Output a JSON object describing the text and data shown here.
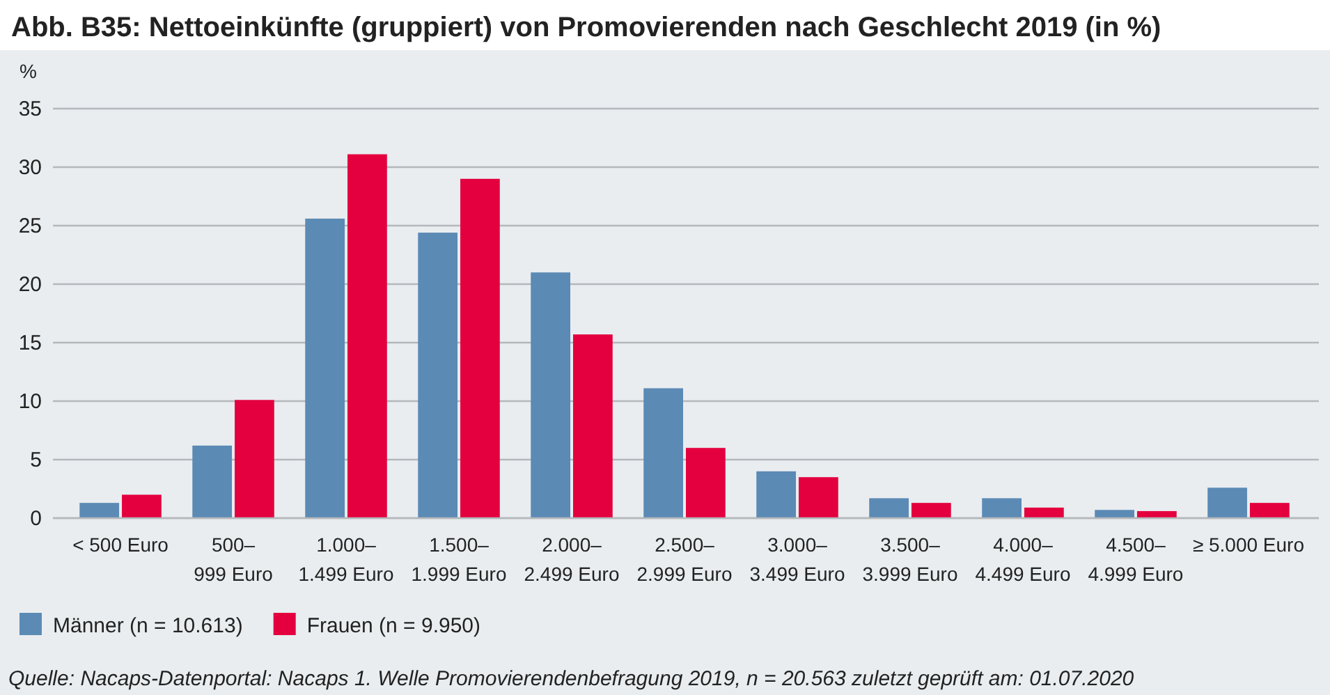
{
  "chart_data": {
    "type": "bar",
    "title": "Abb. B35: Nettoeinkünfte (gruppiert) von Promovierenden nach Geschlecht 2019 (in %)",
    "ylabel": "%",
    "categories": [
      "< 500 Euro",
      "500–999 Euro",
      "1.000–1.499 Euro",
      "1.500–1.999 Euro",
      "2.000–2.499 Euro",
      "2.500–2.999 Euro",
      "3.000–3.499 Euro",
      "3.500–3.999 Euro",
      "4.000–4.499 Euro",
      "4.500–4.999 Euro",
      "≥ 5.000 Euro"
    ],
    "series": [
      {
        "name": "Männer (n = 10.613)",
        "color": "#5b8ab5",
        "values": [
          1.3,
          6.2,
          25.6,
          24.4,
          21.0,
          11.1,
          4.0,
          1.7,
          1.7,
          0.7,
          2.6
        ]
      },
      {
        "name": "Frauen (n = 9.950)",
        "color": "#e4003e",
        "values": [
          2.0,
          10.1,
          31.1,
          29.0,
          15.7,
          6.0,
          3.5,
          1.3,
          0.9,
          0.6,
          1.3
        ]
      }
    ],
    "ylim": [
      0,
      35
    ],
    "yticks": [
      0,
      5,
      10,
      15,
      20,
      25,
      30,
      35
    ],
    "grid": "y",
    "legend": "bottom",
    "annotations": [
      "Quelle: Nacaps-Datenportal: Nacaps 1. Welle Promovierendenbefragung 2019, n = 20.563 zuletzt geprüft am: 01.07.2020"
    ]
  }
}
